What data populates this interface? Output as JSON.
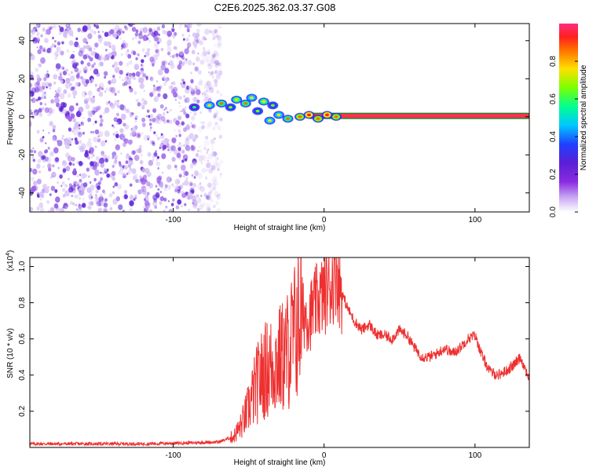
{
  "title": "C2E6.2025.362.03.37.G08",
  "colors": {
    "snr_line": "#ee3030",
    "spectral_scale": [
      "#ffffff",
      "#c6a4f2",
      "#8a2be2",
      "#5a1fd6",
      "#2040ff",
      "#00c8ff",
      "#00ff90",
      "#7cff00",
      "#ffe000",
      "#ff7000",
      "#ff1f1f",
      "#ff2f7f"
    ]
  },
  "chart_data": [
    {
      "type": "heatmap",
      "name": "spectrogram",
      "xlabel": "Height of straight line (km)",
      "ylabel": "Frequency (Hz)",
      "xlim": [
        -195,
        136
      ],
      "ylim": [
        -50,
        49
      ],
      "x_ticks": [
        -100,
        0,
        100
      ],
      "x_tick_labels": [
        "-100",
        "0",
        "100"
      ],
      "y_ticks": [
        -40,
        -20,
        0,
        20,
        40
      ],
      "y_tick_labels": [
        "-40",
        "-20",
        "0",
        "20",
        "40"
      ],
      "noise_region_x": [
        -195,
        -68
      ],
      "signal_line": {
        "x": [
          -10,
          136
        ],
        "frequency": 0.5,
        "amplitude": 1.0
      },
      "signal_blobs": [
        {
          "x": -86,
          "y": 5,
          "amp": 0.3
        },
        {
          "x": -76,
          "y": 6,
          "amp": 0.45
        },
        {
          "x": -68,
          "y": 7,
          "amp": 0.55
        },
        {
          "x": -62,
          "y": 5,
          "amp": 0.4
        },
        {
          "x": -58,
          "y": 9,
          "amp": 0.5
        },
        {
          "x": -52,
          "y": 7,
          "amp": 0.55
        },
        {
          "x": -48,
          "y": 10,
          "amp": 0.45
        },
        {
          "x": -44,
          "y": 3,
          "amp": 0.35
        },
        {
          "x": -40,
          "y": 8,
          "amp": 0.5
        },
        {
          "x": -36,
          "y": -2,
          "amp": 0.45
        },
        {
          "x": -34,
          "y": 6,
          "amp": 0.4
        },
        {
          "x": -30,
          "y": 1,
          "amp": 0.45
        },
        {
          "x": -24,
          "y": -1,
          "amp": 0.55
        },
        {
          "x": -16,
          "y": 0,
          "amp": 0.6
        },
        {
          "x": -10,
          "y": 1,
          "amp": 0.7
        },
        {
          "x": -4,
          "y": -1,
          "amp": 0.6
        },
        {
          "x": 2,
          "y": 1,
          "amp": 0.7
        },
        {
          "x": 8,
          "y": 0,
          "amp": 0.6
        }
      ],
      "colorbar": {
        "label": "Normalized spectral amplitude",
        "min": 0.0,
        "max": 1.0,
        "ticks": [
          0.0,
          0.2,
          0.4,
          0.6,
          0.8
        ],
        "tick_labels": [
          "0.0",
          "0.2",
          "0.4",
          "0.6",
          "0.8"
        ]
      }
    },
    {
      "type": "line",
      "name": "snr",
      "xlabel": "Height of straight line (km)",
      "ylabel": "SNR (10 * v/v)",
      "multiplier_prefix": "(x10",
      "multiplier_exp": "4",
      "multiplier_suffix": ")",
      "xlim": [
        -195,
        136
      ],
      "ylim": [
        0.0,
        1.05
      ],
      "x_ticks": [
        -100,
        0,
        100
      ],
      "x_tick_labels": [
        "-100",
        "0",
        "100"
      ],
      "y_ticks": [
        0.2,
        0.4,
        0.6,
        0.8,
        1.0
      ],
      "y_tick_labels": [
        "0.2",
        "0.4",
        "0.6",
        "0.8",
        "1.0"
      ],
      "series": [
        {
          "name": "SNR",
          "x": [
            -195,
            -160,
            -120,
            -90,
            -70,
            -60,
            -55,
            -50,
            -45,
            -40,
            -35,
            -30,
            -25,
            -20,
            -15,
            -10,
            -5,
            0,
            5,
            8,
            10,
            15,
            20,
            25,
            30,
            35,
            40,
            45,
            50,
            55,
            60,
            65,
            70,
            75,
            80,
            85,
            90,
            95,
            100,
            105,
            110,
            115,
            120,
            125,
            130,
            136
          ],
          "values": [
            0.02,
            0.02,
            0.02,
            0.025,
            0.03,
            0.06,
            0.12,
            0.22,
            0.34,
            0.42,
            0.45,
            0.48,
            0.52,
            0.62,
            0.75,
            0.72,
            0.8,
            0.85,
            0.9,
            1.0,
            0.9,
            0.78,
            0.7,
            0.65,
            0.68,
            0.62,
            0.62,
            0.6,
            0.65,
            0.62,
            0.55,
            0.5,
            0.5,
            0.52,
            0.55,
            0.52,
            0.55,
            0.6,
            0.62,
            0.5,
            0.42,
            0.4,
            0.42,
            0.45,
            0.5,
            0.38
          ]
        }
      ]
    }
  ]
}
